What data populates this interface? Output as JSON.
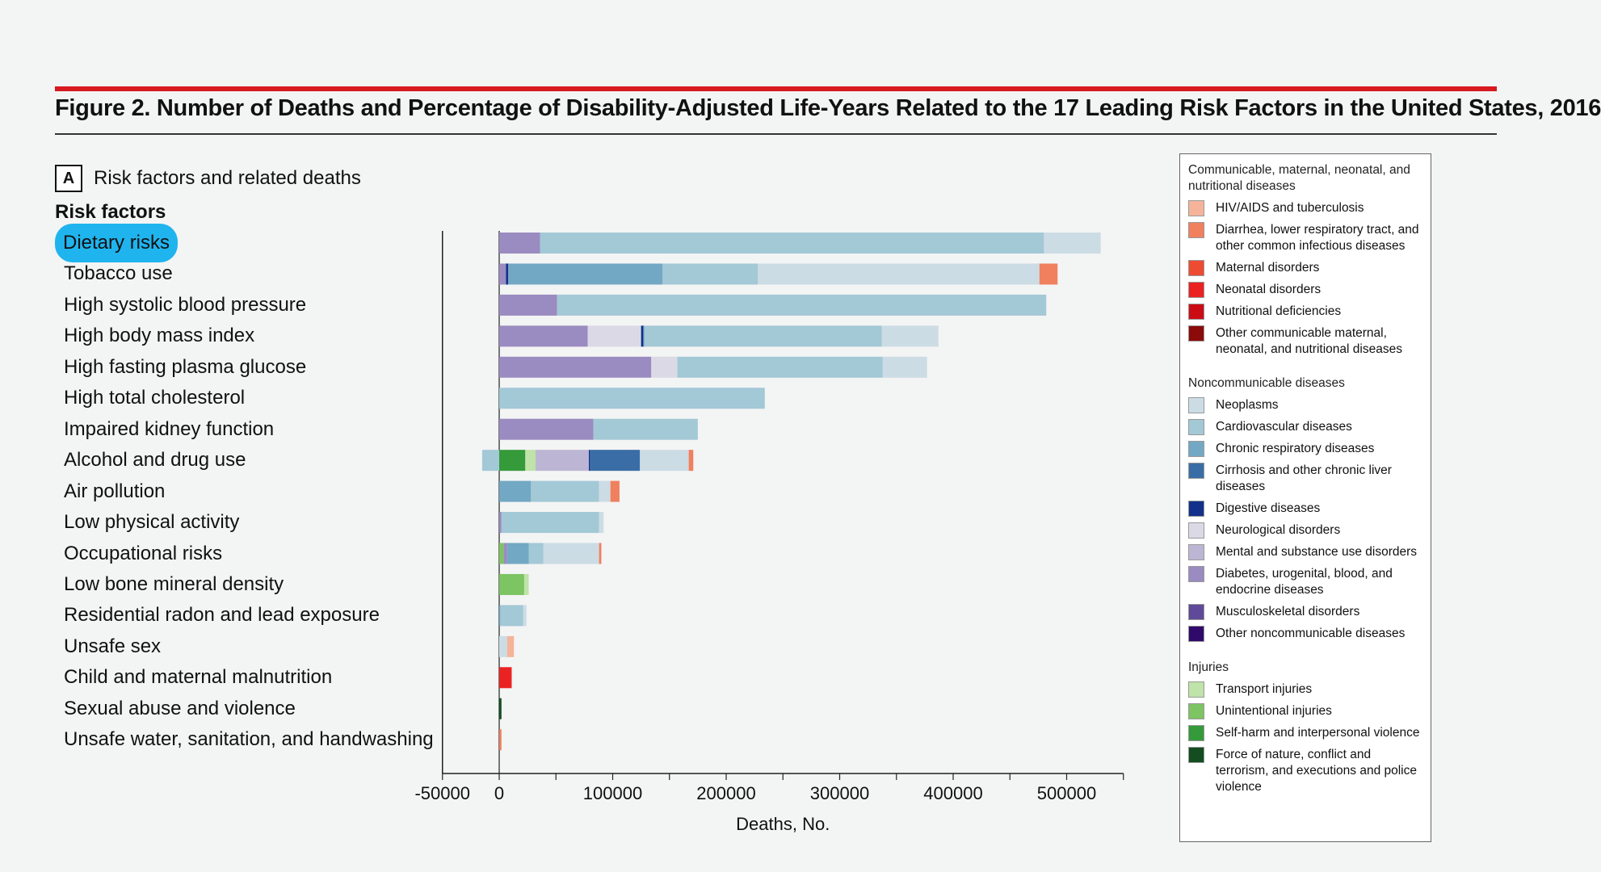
{
  "figure": {
    "title": "Figure 2. Number of Deaths and Percentage of Disability-Adjusted Life-Years Related to the 17 Leading Risk Factors in the United States, 2016",
    "panel_badge": "A",
    "panel_label": "Risk factors and related deaths",
    "risk_factors_heading": "Risk factors",
    "accent_color": "#d71920",
    "selected_highlight_color": "#1fb4ee"
  },
  "legend": {
    "groups": [
      {
        "title": "Communicable, maternal, neonatal, and nutritional diseases",
        "items": [
          {
            "label": "HIV/AIDS and tuberculosis",
            "color": "#f5b49a"
          },
          {
            "label": "Diarrhea, lower respiratory tract, and other common infectious diseases",
            "color": "#f0805e"
          },
          {
            "label": "Maternal disorders",
            "color": "#ee4b33"
          },
          {
            "label": "Neonatal disorders",
            "color": "#ea2222"
          },
          {
            "label": "Nutritional deficiencies",
            "color": "#cc0c14"
          },
          {
            "label": "Other communicable maternal, neonatal, and nutritional diseases",
            "color": "#8b0a0a"
          }
        ]
      },
      {
        "title": "Noncommunicable diseases",
        "items": [
          {
            "label": "Neoplasms",
            "color": "#ccdce5"
          },
          {
            "label": "Cardiovascular diseases",
            "color": "#a3c8d6"
          },
          {
            "label": "Chronic respiratory diseases",
            "color": "#73a8c4"
          },
          {
            "label": "Cirrhosis and other chronic liver diseases",
            "color": "#3a6da6"
          },
          {
            "label": "Digestive diseases",
            "color": "#13318a"
          },
          {
            "label": "Neurological disorders",
            "color": "#dcd9e6"
          },
          {
            "label": "Mental and substance use disorders",
            "color": "#bcb6d4"
          },
          {
            "label": "Diabetes, urogenital, blood, and endocrine diseases",
            "color": "#9a8bc0"
          },
          {
            "label": "Musculoskeletal disorders",
            "color": "#5e4a99"
          },
          {
            "label": "Other noncommunicable diseases",
            "color": "#300a6a"
          }
        ]
      },
      {
        "title": "Injuries",
        "items": [
          {
            "label": "Transport injuries",
            "color": "#bfe3a8"
          },
          {
            "label": "Unintentional injuries",
            "color": "#7dc463"
          },
          {
            "label": "Self-harm and interpersonal violence",
            "color": "#359a3a"
          },
          {
            "label": "Force of nature, conflict and terrorism, and executions and police violence",
            "color": "#134d20"
          }
        ]
      }
    ]
  },
  "chart_data": {
    "type": "bar",
    "orientation": "horizontal",
    "stacked": true,
    "xlabel": "Deaths, No.",
    "xlim": [
      -50000,
      550000
    ],
    "xticks": [
      -50000,
      0,
      100000,
      200000,
      300000,
      400000,
      500000
    ],
    "xtick_labels": [
      "-50000",
      "0",
      "100000",
      "200000",
      "300000",
      "400000",
      "500000"
    ],
    "selected_category": "Dietary risks",
    "categories": [
      "Dietary risks",
      "Tobacco use",
      "High systolic blood pressure",
      "High body mass index",
      "High fasting plasma glucose",
      "High total cholesterol",
      "Impaired kidney function",
      "Alcohol and drug use",
      "Air pollution",
      "Low physical activity",
      "Occupational risks",
      "Low bone mineral density",
      "Residential radon and lead exposure",
      "Unsafe sex",
      "Child and maternal malnutrition",
      "Sexual abuse and violence",
      "Unsafe water, sanitation, and handwashing"
    ],
    "bars": [
      {
        "category": "Dietary risks",
        "segments": [
          {
            "series": "Diabetes, urogenital, blood, and endocrine diseases",
            "value": 36000
          },
          {
            "series": "Cardiovascular diseases",
            "value": 444000
          },
          {
            "series": "Neoplasms",
            "value": 50000
          }
        ]
      },
      {
        "category": "Tobacco use",
        "segments": [
          {
            "series": "Diabetes, urogenital, blood, and endocrine diseases",
            "value": 6000
          },
          {
            "series": "Digestive diseases",
            "value": 2000
          },
          {
            "series": "Chronic respiratory diseases",
            "value": 136000
          },
          {
            "series": "Cardiovascular diseases",
            "value": 84000
          },
          {
            "series": "Neoplasms",
            "value": 248000
          },
          {
            "series": "Diarrhea, lower respiratory tract, and other common infectious diseases",
            "value": 16000
          }
        ]
      },
      {
        "category": "High systolic blood pressure",
        "segments": [
          {
            "series": "Diabetes, urogenital, blood, and endocrine diseases",
            "value": 51000
          },
          {
            "series": "Cardiovascular diseases",
            "value": 431000
          }
        ]
      },
      {
        "category": "High body mass index",
        "segments": [
          {
            "series": "Diabetes, urogenital, blood, and endocrine diseases",
            "value": 78000
          },
          {
            "series": "Neurological disorders",
            "value": 47000
          },
          {
            "series": "Digestive diseases",
            "value": 2000
          },
          {
            "series": "Chronic respiratory diseases",
            "value": 1000
          },
          {
            "series": "Cardiovascular diseases",
            "value": 209000
          },
          {
            "series": "Neoplasms",
            "value": 50000
          }
        ]
      },
      {
        "category": "High fasting plasma glucose",
        "segments": [
          {
            "series": "Diabetes, urogenital, blood, and endocrine diseases",
            "value": 134000
          },
          {
            "series": "Neurological disorders",
            "value": 23000
          },
          {
            "series": "Cardiovascular diseases",
            "value": 181000
          },
          {
            "series": "Neoplasms",
            "value": 39000
          }
        ]
      },
      {
        "category": "High total cholesterol",
        "segments": [
          {
            "series": "Cardiovascular diseases",
            "value": 234000
          }
        ]
      },
      {
        "category": "Impaired kidney function",
        "segments": [
          {
            "series": "Diabetes, urogenital, blood, and endocrine diseases",
            "value": 83000
          },
          {
            "series": "Cardiovascular diseases",
            "value": 92000
          }
        ]
      },
      {
        "category": "Alcohol and drug use",
        "segments": [
          {
            "series": "Cardiovascular diseases",
            "value": -15000
          },
          {
            "series": "Self-harm and interpersonal violence",
            "value": 23000
          },
          {
            "series": "Transport injuries",
            "value": 9000
          },
          {
            "series": "Mental and substance use disorders",
            "value": 47000
          },
          {
            "series": "Digestive diseases",
            "value": 1000
          },
          {
            "series": "Cirrhosis and other chronic liver diseases",
            "value": 44000
          },
          {
            "series": "Neoplasms",
            "value": 43000
          },
          {
            "series": "Diarrhea, lower respiratory tract, and other common infectious diseases",
            "value": 4000
          }
        ]
      },
      {
        "category": "Air pollution",
        "segments": [
          {
            "series": "Chronic respiratory diseases",
            "value": 28000
          },
          {
            "series": "Cardiovascular diseases",
            "value": 60000
          },
          {
            "series": "Neoplasms",
            "value": 10000
          },
          {
            "series": "Diarrhea, lower respiratory tract, and other common infectious diseases",
            "value": 8000
          }
        ]
      },
      {
        "category": "Low physical activity",
        "segments": [
          {
            "series": "Diabetes, urogenital, blood, and endocrine diseases",
            "value": 2000
          },
          {
            "series": "Cardiovascular diseases",
            "value": 86000
          },
          {
            "series": "Neoplasms",
            "value": 4000
          }
        ]
      },
      {
        "category": "Occupational risks",
        "segments": [
          {
            "series": "Unintentional injuries",
            "value": 4000
          },
          {
            "series": "Diabetes, urogenital, blood, and endocrine diseases",
            "value": 3000
          },
          {
            "series": "Chronic respiratory diseases",
            "value": 19000
          },
          {
            "series": "Cardiovascular diseases",
            "value": 13000
          },
          {
            "series": "Neoplasms",
            "value": 49000
          },
          {
            "series": "Diarrhea, lower respiratory tract, and other common infectious diseases",
            "value": 2000
          }
        ]
      },
      {
        "category": "Low bone mineral density",
        "segments": [
          {
            "series": "Unintentional injuries",
            "value": 22000
          },
          {
            "series": "Transport injuries",
            "value": 4000
          }
        ]
      },
      {
        "category": "Residential radon and lead exposure",
        "segments": [
          {
            "series": "Chronic respiratory diseases",
            "value": 1000
          },
          {
            "series": "Cardiovascular diseases",
            "value": 20000
          },
          {
            "series": "Neoplasms",
            "value": 3000
          }
        ]
      },
      {
        "category": "Unsafe sex",
        "segments": [
          {
            "series": "Neoplasms",
            "value": 7000
          },
          {
            "series": "HIV/AIDS and tuberculosis",
            "value": 6000
          }
        ]
      },
      {
        "category": "Child and maternal malnutrition",
        "segments": [
          {
            "series": "Neonatal disorders",
            "value": 11000
          }
        ]
      },
      {
        "category": "Sexual abuse and violence",
        "segments": [
          {
            "series": "Force of nature, conflict and terrorism, and executions and police violence",
            "value": 2000
          }
        ]
      },
      {
        "category": "Unsafe water, sanitation, and handwashing",
        "segments": [
          {
            "series": "Diarrhea, lower respiratory tract, and other common infectious diseases",
            "value": 2000
          }
        ]
      }
    ]
  }
}
